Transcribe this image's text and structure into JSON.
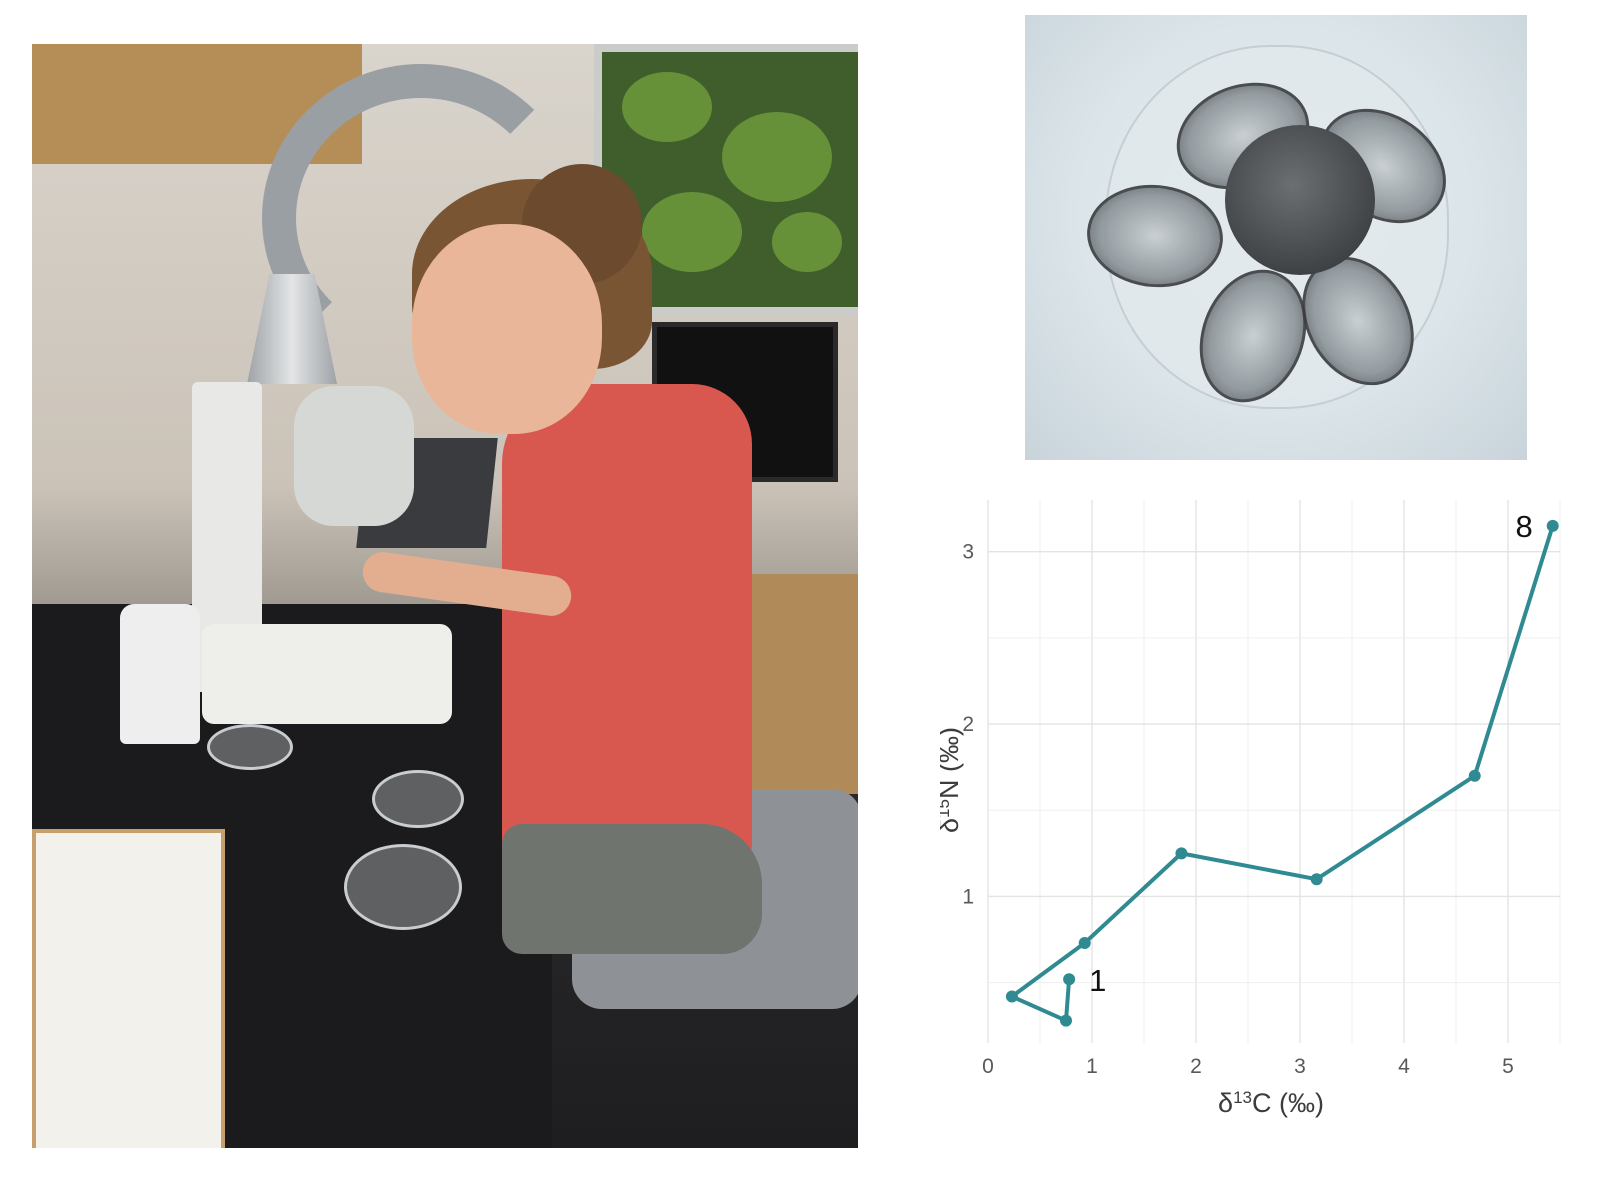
{
  "photo": {
    "subject": "",
    "content": ""
  },
  "micrograph": {
    "content": ""
  },
  "chart_data": {
    "type": "line",
    "title": "",
    "xlabel": {
      "prefix": "δ",
      "sup": "13",
      "main": "C (‰)"
    },
    "ylabel": {
      "prefix": "δ",
      "sup": "15",
      "main": "N (‰)"
    },
    "xlim": [
      0,
      5.5
    ],
    "ylim": [
      0.15,
      3.3
    ],
    "xticks": [
      0,
      1,
      2,
      3,
      4,
      5
    ],
    "yticks": [
      1,
      2,
      3
    ],
    "grid": true,
    "line_color": "#2f8a91",
    "series": [
      {
        "points": [
          {
            "x": 0.78,
            "y": 0.52,
            "label": "1"
          },
          {
            "x": 0.75,
            "y": 0.28
          },
          {
            "x": 0.23,
            "y": 0.42
          },
          {
            "x": 0.93,
            "y": 0.73
          },
          {
            "x": 1.86,
            "y": 1.25
          },
          {
            "x": 3.16,
            "y": 1.1
          },
          {
            "x": 4.68,
            "y": 1.7
          },
          {
            "x": 5.43,
            "y": 3.15,
            "label": "8"
          }
        ]
      }
    ]
  }
}
